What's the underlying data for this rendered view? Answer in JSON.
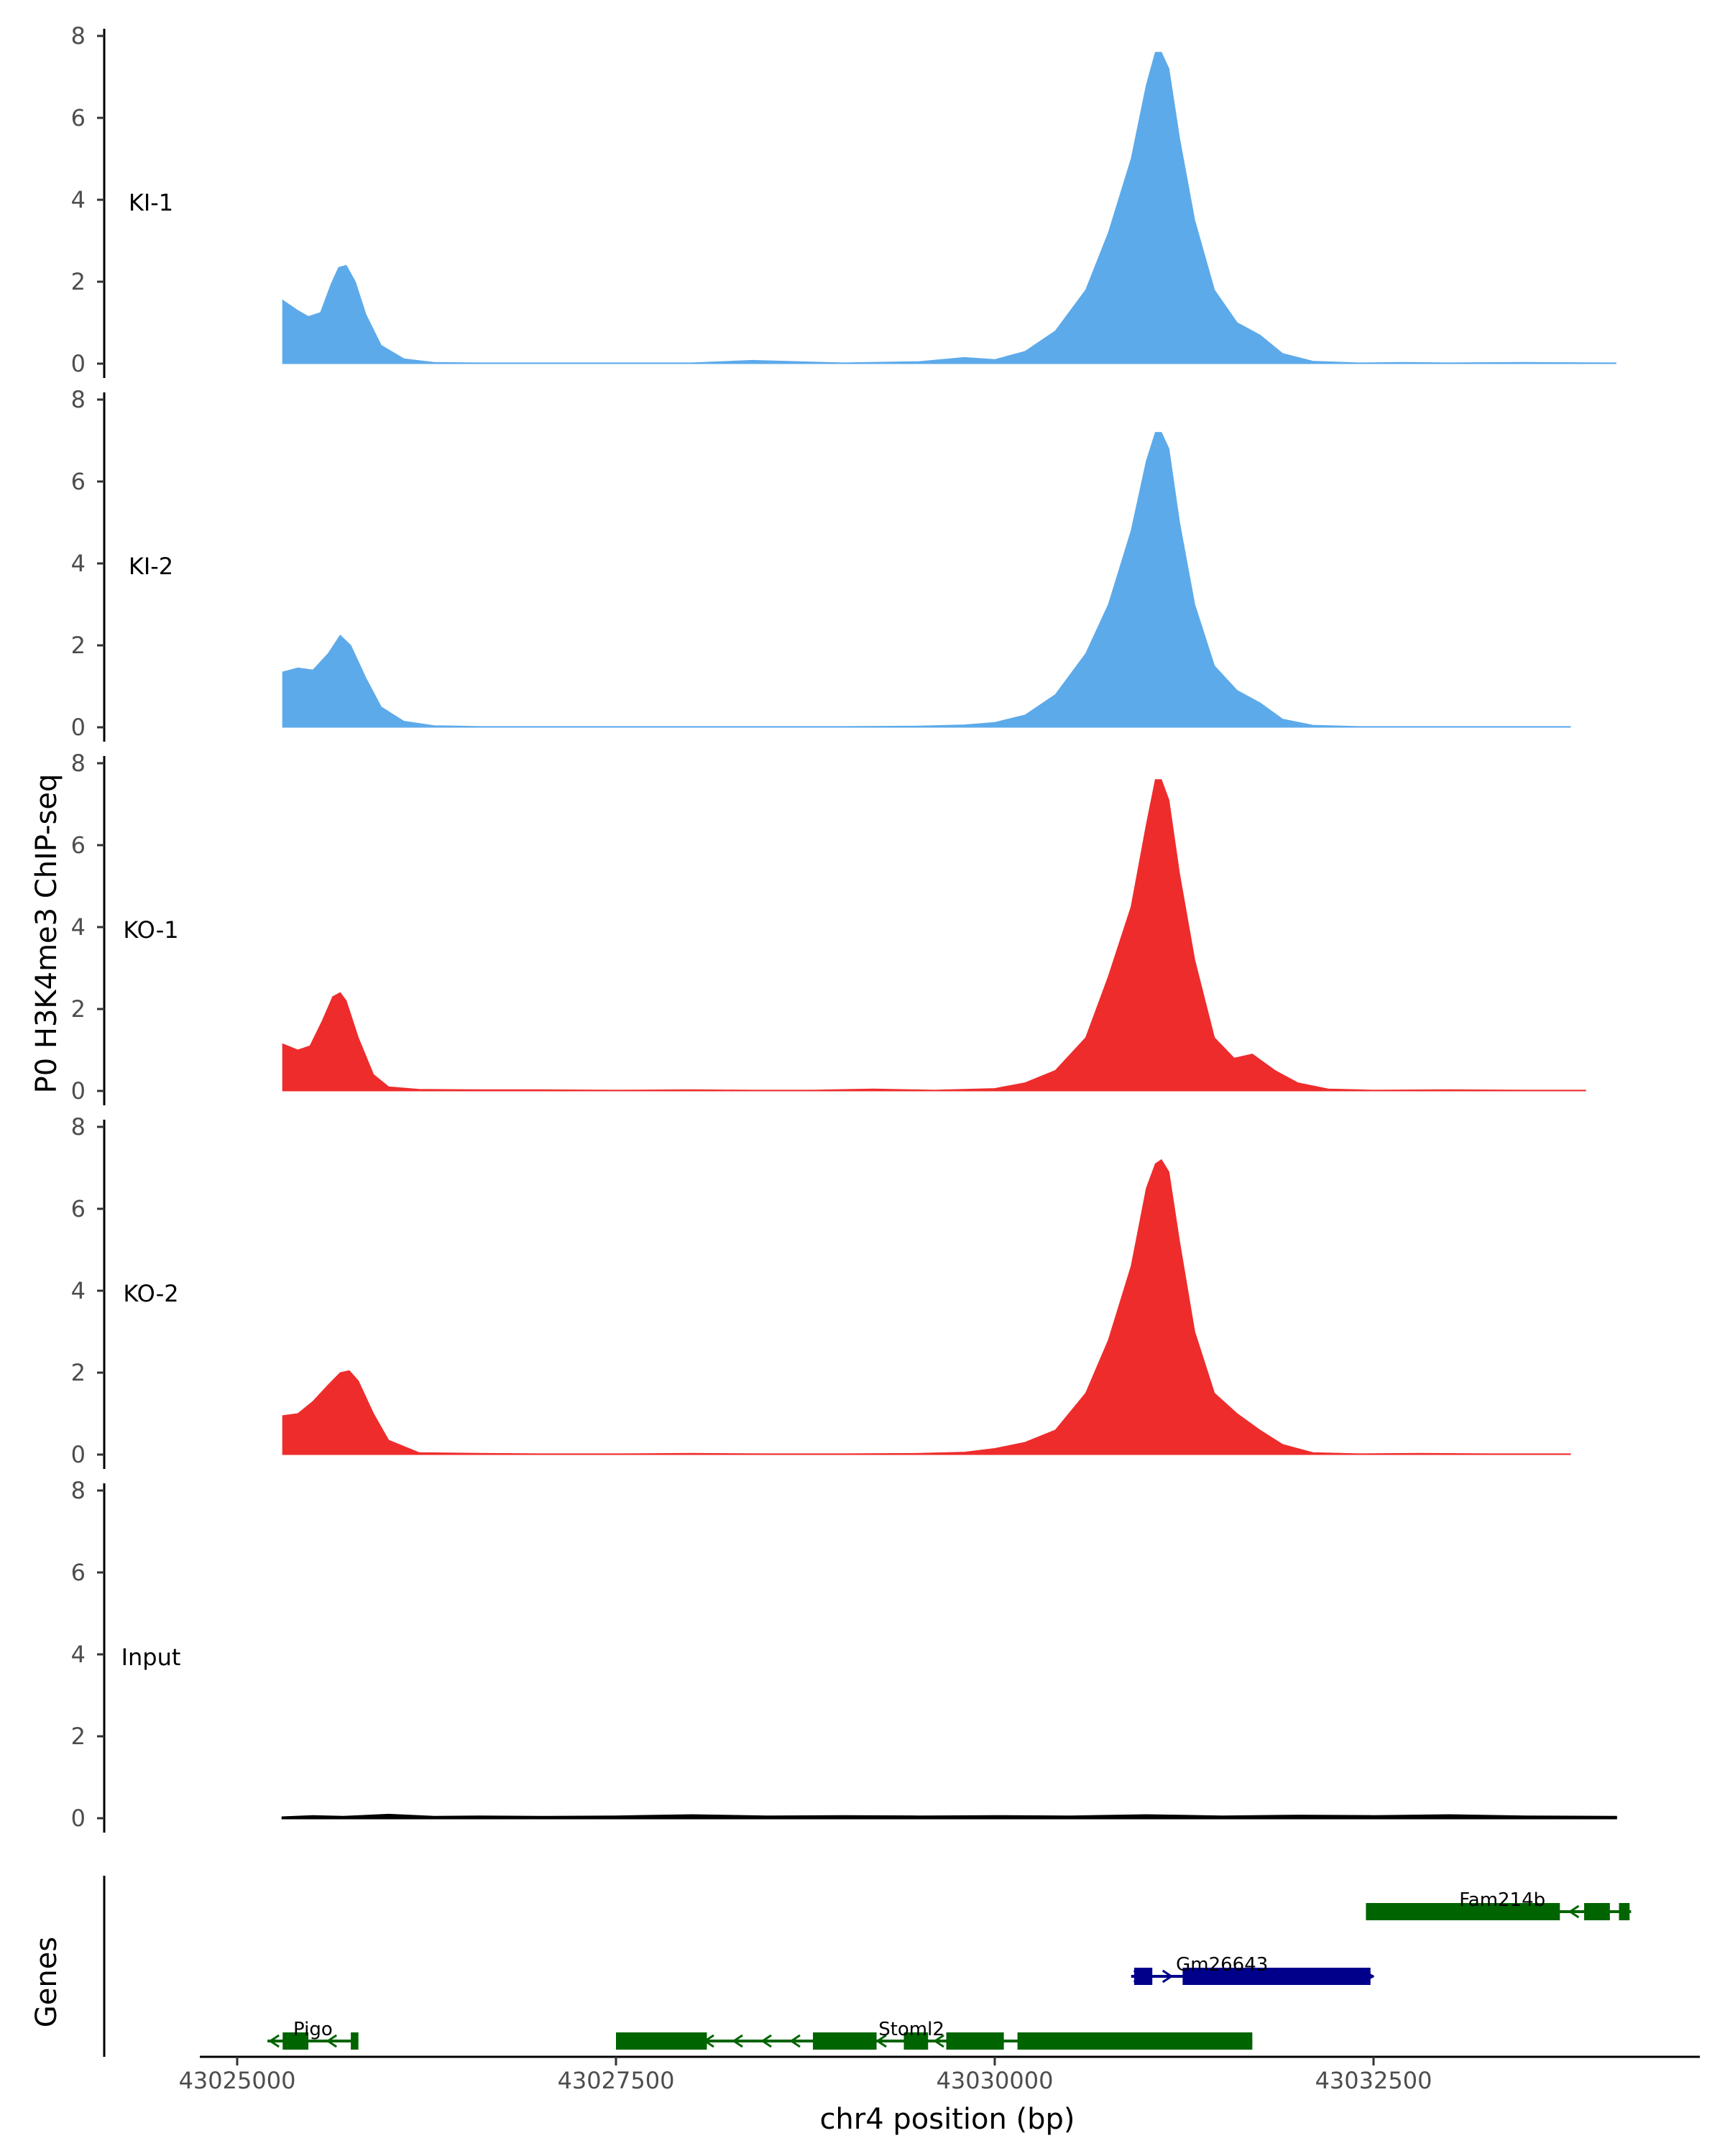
{
  "chart_data": {
    "type": "area",
    "title": "",
    "ylabel": "P0 H3K4me3 ChIP-seq",
    "xlabel": "chr4 position (bp)",
    "ylim": [
      0,
      8
    ],
    "xlim": [
      43024750,
      43034750
    ],
    "y_ticks": [
      "0",
      "2",
      "4",
      "6",
      "8"
    ],
    "x_ticks": [
      {
        "value": 43025000,
        "label": "43025000"
      },
      {
        "value": 43027500,
        "label": "43027500"
      },
      {
        "value": 43030000,
        "label": "43030000"
      },
      {
        "value": 43032500,
        "label": "43032500"
      }
    ],
    "tracks": [
      {
        "name": "KI-1",
        "color": "#5DAAEA",
        "x": [
          43025300,
          43025400,
          43025470,
          43025550,
          43025620,
          43025670,
          43025720,
          43025780,
          43025850,
          43025950,
          43026100,
          43026300,
          43026600,
          43027000,
          43027500,
          43028000,
          43028400,
          43029000,
          43029500,
          43029800,
          43030000,
          43030200,
          43030400,
          43030600,
          43030750,
          43030900,
          43031000,
          43031060,
          43031100,
          43031150,
          43031220,
          43031320,
          43031450,
          43031600,
          43031750,
          43031900,
          43032100,
          43032400,
          43032700,
          43033000,
          43033500,
          43034100
        ],
        "values": [
          1.55,
          1.3,
          1.15,
          1.25,
          1.95,
          2.35,
          2.4,
          2.0,
          1.2,
          0.45,
          0.12,
          0.03,
          0.02,
          0.02,
          0.02,
          0.02,
          0.08,
          0.02,
          0.05,
          0.15,
          0.1,
          0.3,
          0.8,
          1.8,
          3.2,
          5.0,
          6.8,
          7.6,
          7.6,
          7.2,
          5.5,
          3.5,
          1.8,
          1.0,
          0.7,
          0.25,
          0.06,
          0.02,
          0.03,
          0.02,
          0.03,
          0.02
        ]
      },
      {
        "name": "KI-2",
        "color": "#5DAAEA",
        "x": [
          43025300,
          43025400,
          43025500,
          43025600,
          43025680,
          43025750,
          43025850,
          43025950,
          43026100,
          43026300,
          43026600,
          43027000,
          43027500,
          43028000,
          43028500,
          43029000,
          43029500,
          43029800,
          43030000,
          43030200,
          43030400,
          43030600,
          43030750,
          43030900,
          43031000,
          43031060,
          43031100,
          43031150,
          43031220,
          43031320,
          43031450,
          43031600,
          43031750,
          43031900,
          43032100,
          43032400,
          43032800,
          43033300,
          43033800
        ],
        "values": [
          1.35,
          1.45,
          1.4,
          1.8,
          2.25,
          2.0,
          1.2,
          0.5,
          0.15,
          0.04,
          0.02,
          0.02,
          0.02,
          0.02,
          0.02,
          0.02,
          0.03,
          0.06,
          0.12,
          0.3,
          0.8,
          1.8,
          3.0,
          4.8,
          6.5,
          7.2,
          7.2,
          6.8,
          5.0,
          3.0,
          1.5,
          0.9,
          0.6,
          0.2,
          0.05,
          0.02,
          0.02,
          0.02,
          0.02
        ]
      },
      {
        "name": "KO-1",
        "color": "#EE2C2C",
        "x": [
          43025300,
          43025400,
          43025480,
          43025560,
          43025630,
          43025680,
          43025720,
          43025800,
          43025900,
          43026000,
          43026200,
          43026600,
          43027000,
          43027500,
          43028000,
          43028400,
          43028800,
          43029200,
          43029600,
          43030000,
          43030200,
          43030400,
          43030600,
          43030750,
          43030900,
          43031000,
          43031060,
          43031100,
          43031150,
          43031220,
          43031320,
          43031450,
          43031580,
          43031700,
          43031850,
          43032000,
          43032200,
          43032500,
          43033000,
          43033500,
          43033900
        ],
        "values": [
          1.15,
          1.0,
          1.1,
          1.7,
          2.3,
          2.4,
          2.2,
          1.3,
          0.4,
          0.1,
          0.04,
          0.03,
          0.03,
          0.02,
          0.03,
          0.02,
          0.02,
          0.05,
          0.02,
          0.06,
          0.2,
          0.5,
          1.3,
          2.8,
          4.5,
          6.5,
          7.6,
          7.6,
          7.1,
          5.3,
          3.2,
          1.3,
          0.8,
          0.9,
          0.5,
          0.2,
          0.05,
          0.02,
          0.03,
          0.02,
          0.02
        ]
      },
      {
        "name": "KO-2",
        "color": "#EE2C2C",
        "x": [
          43025300,
          43025400,
          43025500,
          43025600,
          43025680,
          43025740,
          43025800,
          43025900,
          43026000,
          43026200,
          43026600,
          43027000,
          43027500,
          43028000,
          43028500,
          43029000,
          43029500,
          43029800,
          43030000,
          43030200,
          43030400,
          43030600,
          43030750,
          43030900,
          43031000,
          43031060,
          43031100,
          43031150,
          43031220,
          43031320,
          43031450,
          43031600,
          43031750,
          43031900,
          43032100,
          43032400,
          43032800,
          43033300,
          43033800
        ],
        "values": [
          0.95,
          1.0,
          1.3,
          1.7,
          2.0,
          2.05,
          1.8,
          1.0,
          0.35,
          0.05,
          0.03,
          0.02,
          0.02,
          0.03,
          0.02,
          0.02,
          0.03,
          0.06,
          0.15,
          0.3,
          0.6,
          1.5,
          2.8,
          4.6,
          6.5,
          7.1,
          7.2,
          6.9,
          5.2,
          3.0,
          1.5,
          1.0,
          0.6,
          0.25,
          0.05,
          0.02,
          0.03,
          0.02,
          0.02
        ]
      },
      {
        "name": "Input",
        "color": "#000000",
        "x": [
          43025300,
          43025500,
          43025700,
          43026000,
          43026300,
          43026600,
          43027000,
          43027500,
          43028000,
          43028500,
          43029000,
          43029500,
          43030000,
          43030500,
          43031000,
          43031500,
          43032000,
          43032500,
          43033000,
          43033500,
          43034100
        ],
        "values": [
          0.02,
          0.05,
          0.03,
          0.08,
          0.03,
          0.04,
          0.03,
          0.04,
          0.07,
          0.04,
          0.05,
          0.04,
          0.05,
          0.04,
          0.07,
          0.04,
          0.06,
          0.05,
          0.07,
          0.04,
          0.03
        ]
      }
    ],
    "genes": [
      {
        "name": "Pigo",
        "color": "#006400",
        "row": 0,
        "strand": "-",
        "start": 43025200,
        "end": 43025800,
        "exons": [
          [
            43025300,
            43025470
          ],
          [
            43025750,
            43025800
          ]
        ]
      },
      {
        "name": "Stoml2",
        "color": "#006400",
        "row": 0,
        "strand": "-",
        "start": 43027500,
        "end": 43031700,
        "exons": [
          [
            43027500,
            43028100
          ],
          [
            43028800,
            43029220
          ],
          [
            43029400,
            43029560
          ],
          [
            43029680,
            43030060
          ],
          [
            43030150,
            43031700
          ]
        ]
      },
      {
        "name": "Gm26643",
        "color": "#00008B",
        "row": 1,
        "strand": "+",
        "start": 43030900,
        "end": 43032500,
        "exons": [
          [
            43030920,
            43031040
          ],
          [
            43031240,
            43032480
          ]
        ]
      },
      {
        "name": "Fam214b",
        "color": "#006400",
        "row": 2,
        "strand": "-",
        "start": 43032450,
        "end": 43034200,
        "exons": [
          [
            43032450,
            43033730
          ],
          [
            43033890,
            43034060
          ],
          [
            43034120,
            43034190
          ]
        ]
      }
    ],
    "genes_label": "Genes"
  }
}
